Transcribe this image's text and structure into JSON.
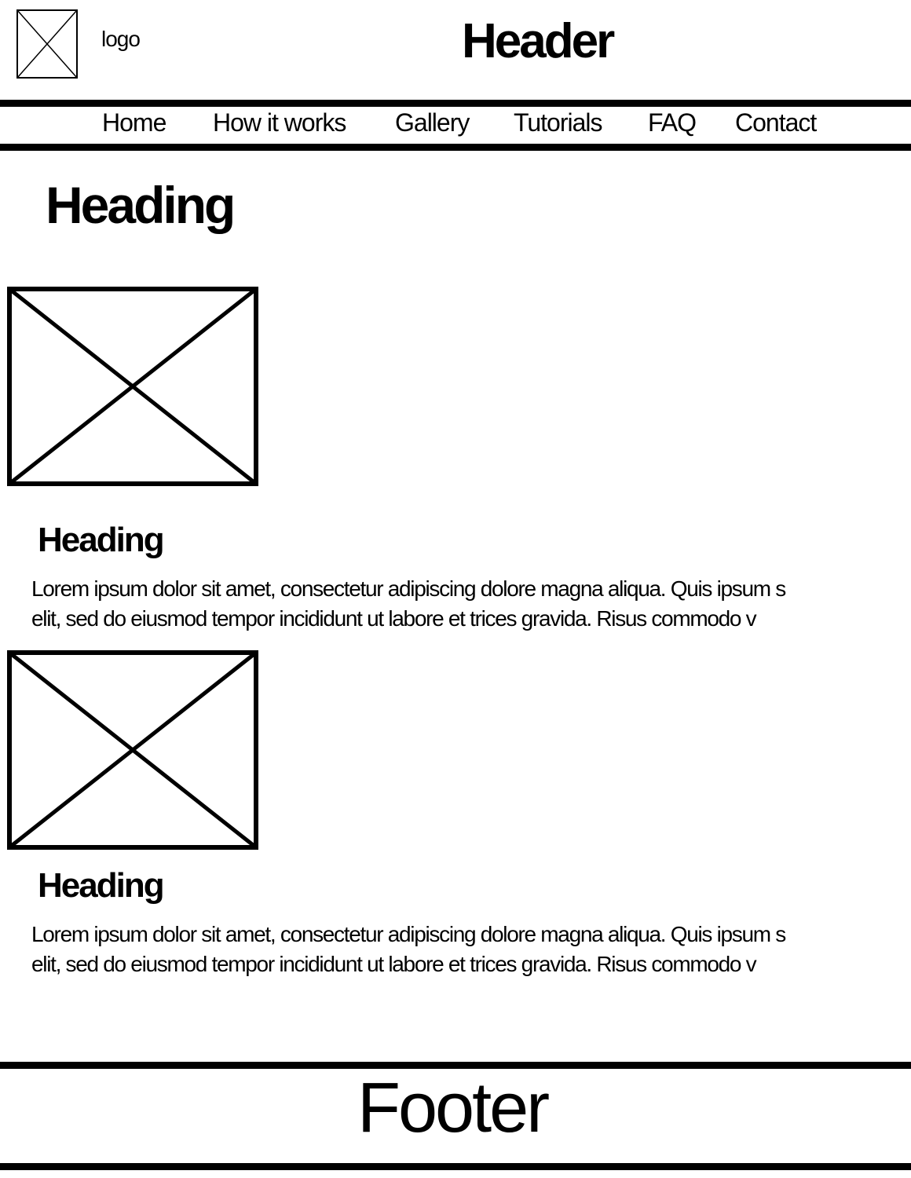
{
  "header": {
    "logo_label": "logo",
    "title": "Header"
  },
  "nav": {
    "items": [
      {
        "label": "Home"
      },
      {
        "label": "How it works"
      },
      {
        "label": "Gallery"
      },
      {
        "label": "Tutorials"
      },
      {
        "label": "FAQ"
      },
      {
        "label": "Contact"
      }
    ]
  },
  "main": {
    "heading": "Heading",
    "cards": [
      {
        "heading": "Heading",
        "line1": "Lorem ipsum dolor sit amet, consectetur adipiscing dolore magna aliqua. Quis ipsum s",
        "line2": "elit, sed do eiusmod tempor incididunt ut labore et  trices gravida. Risus commodo v"
      },
      {
        "heading": "Heading",
        "line1": "Lorem ipsum dolor sit amet, consectetur adipiscing dolore magna aliqua. Quis ipsum s",
        "line2": "elit, sed do eiusmod tempor incididunt ut labore et  trices gravida. Risus commodo v"
      }
    ]
  },
  "footer": {
    "label": "Footer"
  },
  "icons": {
    "logo": "image-placeholder-icon",
    "card_image": "image-placeholder-icon"
  },
  "colors": {
    "ink": "#000000",
    "background": "#ffffff"
  }
}
